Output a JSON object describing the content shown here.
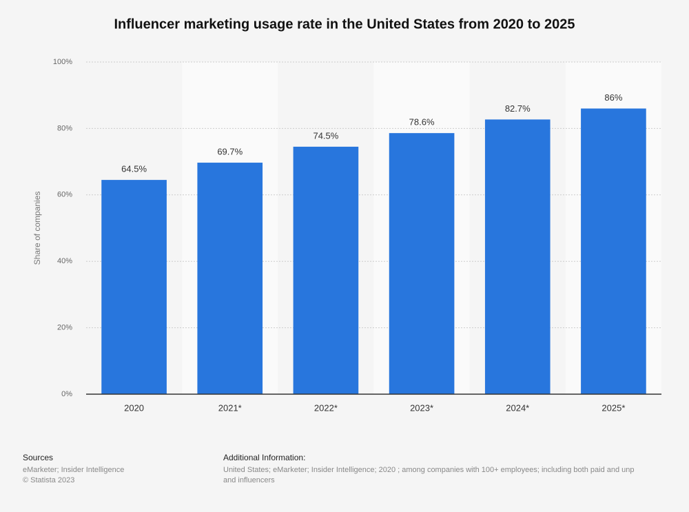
{
  "chart_data": {
    "type": "bar",
    "title": "Influencer marketing usage rate in the United States from 2020 to 2025",
    "y_label": "Share of companies",
    "categories": [
      "2020",
      "2021*",
      "2022*",
      "2023*",
      "2024*",
      "2025*"
    ],
    "values": [
      64.5,
      69.7,
      74.5,
      78.6,
      82.7,
      86
    ],
    "value_labels": [
      "64.5%",
      "69.7%",
      "74.5%",
      "78.6%",
      "82.7%",
      "86%"
    ],
    "color": "#2876dd",
    "ylim": [
      0,
      100
    ],
    "yticks": [
      {
        "value": 0,
        "label": "0%"
      },
      {
        "value": 20,
        "label": "20%"
      },
      {
        "value": 40,
        "label": "40%"
      },
      {
        "value": 60,
        "label": "60%"
      },
      {
        "value": 80,
        "label": "80%"
      },
      {
        "value": 100,
        "label": "100%"
      }
    ],
    "grid": true
  },
  "footer": {
    "sources_title": "Sources",
    "sources": [
      "eMarketer; Insider Intelligence",
      "© Statista 2023"
    ],
    "info_title": "Additional Information:",
    "info": [
      "United States; eMarketer; Insider Intelligence; 2020 ; among companies with 100+ employees; including both paid and unp",
      "and influencers"
    ]
  }
}
